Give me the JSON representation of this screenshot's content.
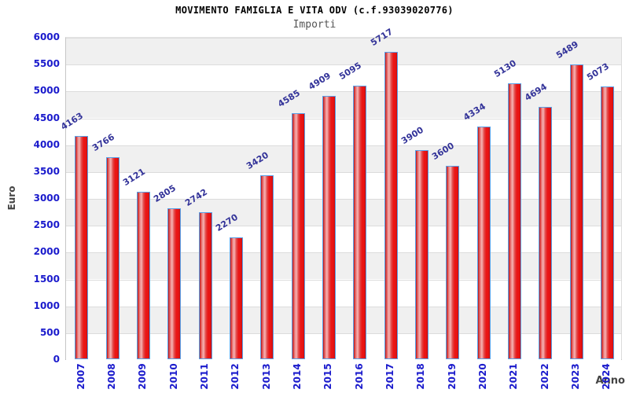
{
  "chart_data": {
    "type": "bar",
    "title": "MOVIMENTO FAMIGLIA E VITA ODV (c.f.93039020776)",
    "subtitle": "Importi",
    "xlabel": "Anno",
    "ylabel": "Euro",
    "categories": [
      "2007",
      "2008",
      "2009",
      "2010",
      "2011",
      "2012",
      "2013",
      "2014",
      "2015",
      "2016",
      "2017",
      "2018",
      "2019",
      "2020",
      "2021",
      "2022",
      "2023",
      "2024"
    ],
    "values": [
      4163,
      3766,
      3121,
      2805,
      2742,
      2270,
      3420,
      4585,
      4909,
      5095,
      5717,
      3900,
      3600,
      4334,
      5130,
      4694,
      5489,
      5073
    ],
    "ylim": [
      0,
      6000
    ],
    "ytick_step": 500,
    "yticks": [
      0,
      500,
      1000,
      1500,
      2000,
      2500,
      3000,
      3500,
      4000,
      4500,
      5000,
      5500,
      6000
    ],
    "legend": "none",
    "grid": "horizontal-alternating-bands",
    "value_label_rotation_deg": -32,
    "xtick_rotation_deg": -90,
    "colors": {
      "bar_fill": "#ea1414",
      "bar_highlight": "#f6b4b4",
      "bar_edge_dark": "#c01414",
      "bar_border": "#58a0e8",
      "tick_label": "#1a1acc",
      "value_label": "#333399",
      "band_gray": "#f0f0f0",
      "band_white": "#ffffff",
      "grid_line": "#dcdcdc",
      "title": "#000000",
      "subtitle": "#555555",
      "axis_title": "#444444"
    }
  }
}
